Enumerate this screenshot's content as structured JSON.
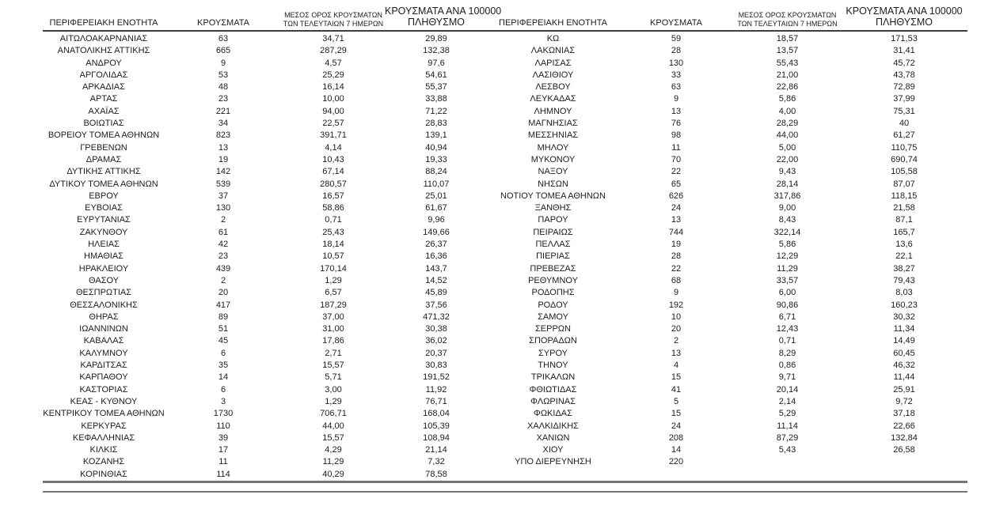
{
  "table": {
    "headers": {
      "region": "ΠΕΡΙΦΕΡΕΙΑΚΗ ΕΝΟΤΗΤΑ",
      "cases": "ΚΡΟΥΣΜΑΤΑ",
      "avg7_line1": "ΜΕΣΟΣ ΟΡΟΣ ΚΡΟΥΣΜΑΤΩΝ",
      "avg7_line2": "ΤΩΝ ΤΕΛΕΥΤΑΙΩΝ 7 ΗΜΕΡΩΝ",
      "per100k_line1": "ΚΡΟΥΣΜΑΤΑ ΑΝΑ 100000",
      "per100k_line2": "ΠΛΗΘΥΣΜΟ"
    },
    "left_rows": [
      [
        "ΑΙΤΩΛΟΑΚΑΡΝΑΝΙΑΣ",
        "63",
        "34,71",
        "29,89"
      ],
      [
        "ΑΝΑΤΟΛΙΚΗΣ ΑΤΤΙΚΗΣ",
        "665",
        "287,29",
        "132,38"
      ],
      [
        "ΑΝΔΡΟΥ",
        "9",
        "4,57",
        "97,6"
      ],
      [
        "ΑΡΓΟΛΙΔΑΣ",
        "53",
        "25,29",
        "54,61"
      ],
      [
        "ΑΡΚΑΔΙΑΣ",
        "48",
        "16,14",
        "55,37"
      ],
      [
        "ΑΡΤΑΣ",
        "23",
        "10,00",
        "33,88"
      ],
      [
        "ΑΧΑΪΑΣ",
        "221",
        "94,00",
        "71,22"
      ],
      [
        "ΒΟΙΩΤΙΑΣ",
        "34",
        "22,57",
        "28,83"
      ],
      [
        "ΒΟΡΕΙΟΥ ΤΟΜΕΑ ΑΘΗΝΩΝ",
        "823",
        "391,71",
        "139,1"
      ],
      [
        "ΓΡΕΒΕΝΩΝ",
        "13",
        "4,14",
        "40,94"
      ],
      [
        "ΔΡΑΜΑΣ",
        "19",
        "10,43",
        "19,33"
      ],
      [
        "ΔΥΤΙΚΗΣ ΑΤΤΙΚΗΣ",
        "142",
        "67,14",
        "88,24"
      ],
      [
        "ΔΥΤΙΚΟΥ ΤΟΜΕΑ ΑΘΗΝΩΝ",
        "539",
        "280,57",
        "110,07"
      ],
      [
        "ΕΒΡΟΥ",
        "37",
        "16,57",
        "25,01"
      ],
      [
        "ΕΥΒΟΙΑΣ",
        "130",
        "58,86",
        "61,67"
      ],
      [
        "ΕΥΡΥΤΑΝΙΑΣ",
        "2",
        "0,71",
        "9,96"
      ],
      [
        "ΖΑΚΥΝΘΟΥ",
        "61",
        "25,43",
        "149,66"
      ],
      [
        "ΗΛΕΙΑΣ",
        "42",
        "18,14",
        "26,37"
      ],
      [
        "ΗΜΑΘΙΑΣ",
        "23",
        "10,57",
        "16,36"
      ],
      [
        "ΗΡΑΚΛΕΙΟΥ",
        "439",
        "170,14",
        "143,7"
      ],
      [
        "ΘΑΣΟΥ",
        "2",
        "1,29",
        "14,52"
      ],
      [
        "ΘΕΣΠΡΩΤΙΑΣ",
        "20",
        "6,57",
        "45,89"
      ],
      [
        "ΘΕΣΣΑΛΟΝΙΚΗΣ",
        "417",
        "187,29",
        "37,56"
      ],
      [
        "ΘΗΡΑΣ",
        "89",
        "37,00",
        "471,32"
      ],
      [
        "ΙΩΑΝΝΙΝΩΝ",
        "51",
        "31,00",
        "30,38"
      ],
      [
        "ΚΑΒΑΛΑΣ",
        "45",
        "17,86",
        "36,02"
      ],
      [
        "ΚΑΛΥΜΝΟΥ",
        "6",
        "2,71",
        "20,37"
      ],
      [
        "ΚΑΡΔΙΤΣΑΣ",
        "35",
        "15,57",
        "30,83"
      ],
      [
        "ΚΑΡΠΑΘΟΥ",
        "14",
        "5,71",
        "191,52"
      ],
      [
        "ΚΑΣΤΟΡΙΑΣ",
        "6",
        "3,00",
        "11,92"
      ],
      [
        "ΚΕΑΣ - ΚΥΘΝΟΥ",
        "3",
        "1,29",
        "76,71"
      ],
      [
        "ΚΕΝΤΡΙΚΟΥ ΤΟΜΕΑ ΑΘΗΝΩΝ",
        "1730",
        "706,71",
        "168,04"
      ],
      [
        "ΚΕΡΚΥΡΑΣ",
        "110",
        "44,00",
        "105,39"
      ],
      [
        "ΚΕΦΑΛΛΗΝΙΑΣ",
        "39",
        "15,57",
        "108,94"
      ],
      [
        "ΚΙΛΚΙΣ",
        "17",
        "4,29",
        "21,14"
      ],
      [
        "ΚΟΖΑΝΗΣ",
        "11",
        "11,29",
        "7,32"
      ],
      [
        "ΚΟΡΙΝΘΙΑΣ",
        "114",
        "40,29",
        "78,58"
      ]
    ],
    "right_rows": [
      [
        "ΚΩ",
        "59",
        "18,57",
        "171,53"
      ],
      [
        "ΛΑΚΩΝΙΑΣ",
        "28",
        "13,57",
        "31,41"
      ],
      [
        "ΛΑΡΙΣΑΣ",
        "130",
        "55,43",
        "45,72"
      ],
      [
        "ΛΑΣΙΘΙΟΥ",
        "33",
        "21,00",
        "43,78"
      ],
      [
        "ΛΕΣΒΟΥ",
        "63",
        "22,86",
        "72,89"
      ],
      [
        "ΛΕΥΚΑΔΑΣ",
        "9",
        "5,86",
        "37,99"
      ],
      [
        "ΛΗΜΝΟΥ",
        "13",
        "4,00",
        "75,31"
      ],
      [
        "ΜΑΓΝΗΣΙΑΣ",
        "76",
        "28,29",
        "40"
      ],
      [
        "ΜΕΣΣΗΝΙΑΣ",
        "98",
        "44,00",
        "61,27"
      ],
      [
        "ΜΗΛΟΥ",
        "11",
        "5,00",
        "110,75"
      ],
      [
        "ΜΥΚΟΝΟΥ",
        "70",
        "22,00",
        "690,74"
      ],
      [
        "ΝΑΞΟΥ",
        "22",
        "9,43",
        "105,58"
      ],
      [
        "ΝΗΣΩΝ",
        "65",
        "28,14",
        "87,07"
      ],
      [
        "ΝΟΤΙΟΥ ΤΟΜΕΑ ΑΘΗΝΩΝ",
        "626",
        "317,86",
        "118,15"
      ],
      [
        "ΞΑΝΘΗΣ",
        "24",
        "9,00",
        "21,58"
      ],
      [
        "ΠΑΡΟΥ",
        "13",
        "8,43",
        "87,1"
      ],
      [
        "ΠΕΙΡΑΙΩΣ",
        "744",
        "322,14",
        "165,7"
      ],
      [
        "ΠΕΛΛΑΣ",
        "19",
        "5,86",
        "13,6"
      ],
      [
        "ΠΙΕΡΙΑΣ",
        "28",
        "12,29",
        "22,1"
      ],
      [
        "ΠΡΕΒΕΖΑΣ",
        "22",
        "11,29",
        "38,27"
      ],
      [
        "ΡΕΘΥΜΝΟΥ",
        "68",
        "33,57",
        "79,43"
      ],
      [
        "ΡΟΔΟΠΗΣ",
        "9",
        "6,00",
        "8,03"
      ],
      [
        "ΡΟΔΟΥ",
        "192",
        "90,86",
        "160,23"
      ],
      [
        "ΣΑΜΟΥ",
        "10",
        "6,71",
        "30,32"
      ],
      [
        "ΣΕΡΡΩΝ",
        "20",
        "12,43",
        "11,34"
      ],
      [
        "ΣΠΟΡΑΔΩΝ",
        "2",
        "0,71",
        "14,49"
      ],
      [
        "ΣΥΡΟΥ",
        "13",
        "8,29",
        "60,45"
      ],
      [
        "ΤΗΝΟΥ",
        "4",
        "0,86",
        "46,32"
      ],
      [
        "ΤΡΙΚΑΛΩΝ",
        "15",
        "9,71",
        "11,44"
      ],
      [
        "ΦΘΙΩΤΙΔΑΣ",
        "41",
        "20,14",
        "25,91"
      ],
      [
        "ΦΛΩΡΙΝΑΣ",
        "5",
        "2,14",
        "9,72"
      ],
      [
        "ΦΩΚΙΔΑΣ",
        "15",
        "5,29",
        "37,18"
      ],
      [
        "ΧΑΛΚΙΔΙΚΗΣ",
        "24",
        "11,14",
        "22,66"
      ],
      [
        "ΧΑΝΙΩΝ",
        "208",
        "87,29",
        "132,84"
      ],
      [
        "ΧΙΟΥ",
        "14",
        "5,43",
        "26,58"
      ],
      [
        "ΥΠΟ ΔΙΕΡΕΥΝΗΣΗ",
        "220",
        "",
        ""
      ]
    ],
    "colors": {
      "header_rule": "#3d3d3d",
      "bottom_rule": "#757575",
      "text": "#1c1c1c",
      "background": "#ffffff"
    }
  }
}
